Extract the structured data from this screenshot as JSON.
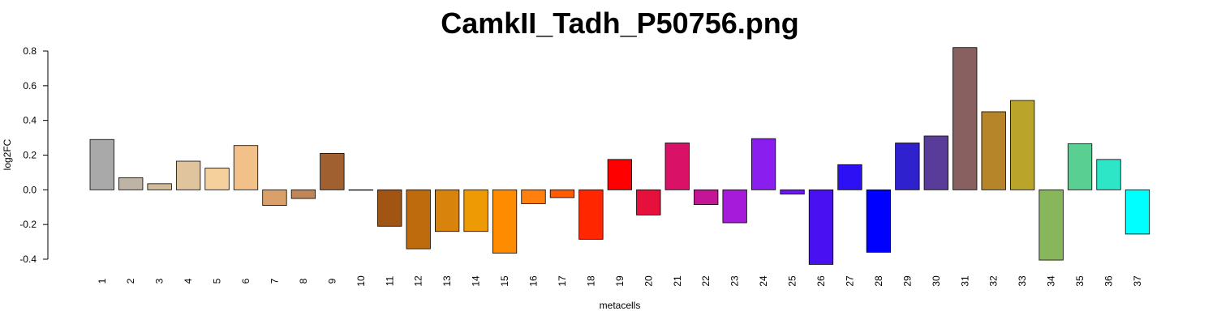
{
  "chart_data": {
    "type": "bar",
    "title": "CamkII_Tadh_P50756.png",
    "xlabel": "metacells",
    "ylabel": "log2FC",
    "ylim": [
      -0.4,
      0.8
    ],
    "yticks": [
      "-0.4",
      "-0.2",
      "0.0",
      "0.2",
      "0.4",
      "0.6",
      "0.8"
    ],
    "categories": [
      "1",
      "2",
      "3",
      "4",
      "5",
      "6",
      "7",
      "8",
      "9",
      "10",
      "11",
      "12",
      "13",
      "14",
      "15",
      "16",
      "17",
      "18",
      "19",
      "20",
      "21",
      "22",
      "23",
      "24",
      "25",
      "26",
      "27",
      "28",
      "29",
      "30",
      "31",
      "32",
      "33",
      "34",
      "35",
      "36",
      "37"
    ],
    "values": [
      0.29,
      0.07,
      0.035,
      0.165,
      0.125,
      0.255,
      -0.09,
      -0.05,
      0.21,
      0.0,
      -0.21,
      -0.34,
      -0.24,
      -0.24,
      -0.365,
      -0.08,
      -0.045,
      -0.285,
      0.175,
      -0.145,
      0.27,
      -0.085,
      -0.19,
      0.295,
      -0.025,
      -0.43,
      0.145,
      -0.36,
      0.27,
      0.31,
      0.82,
      0.45,
      0.515,
      -0.405,
      0.265,
      0.175,
      -0.255
    ],
    "colors": [
      "#A9A9A9",
      "#BEB4A5",
      "#D2BC99",
      "#E0C49E",
      "#F5CF9C",
      "#F2C18A",
      "#D9A06B",
      "#BF865A",
      "#A0602F",
      "#8F5320",
      "#A05513",
      "#BE6B0E",
      "#D8830C",
      "#EE9A05",
      "#FF8C00",
      "#FF7F0F",
      "#FF5A06",
      "#FF2600",
      "#FF0000",
      "#E5103C",
      "#D91268",
      "#C41597",
      "#A61BD9",
      "#8A1EEF",
      "#6E18F2",
      "#4910F2",
      "#2E10F5",
      "#0000FF",
      "#3021CF",
      "#593C99",
      "#886060",
      "#B6852A",
      "#BAA52A",
      "#87B75A",
      "#5ACF92",
      "#2DE5C7",
      "#00FFFF"
    ]
  }
}
